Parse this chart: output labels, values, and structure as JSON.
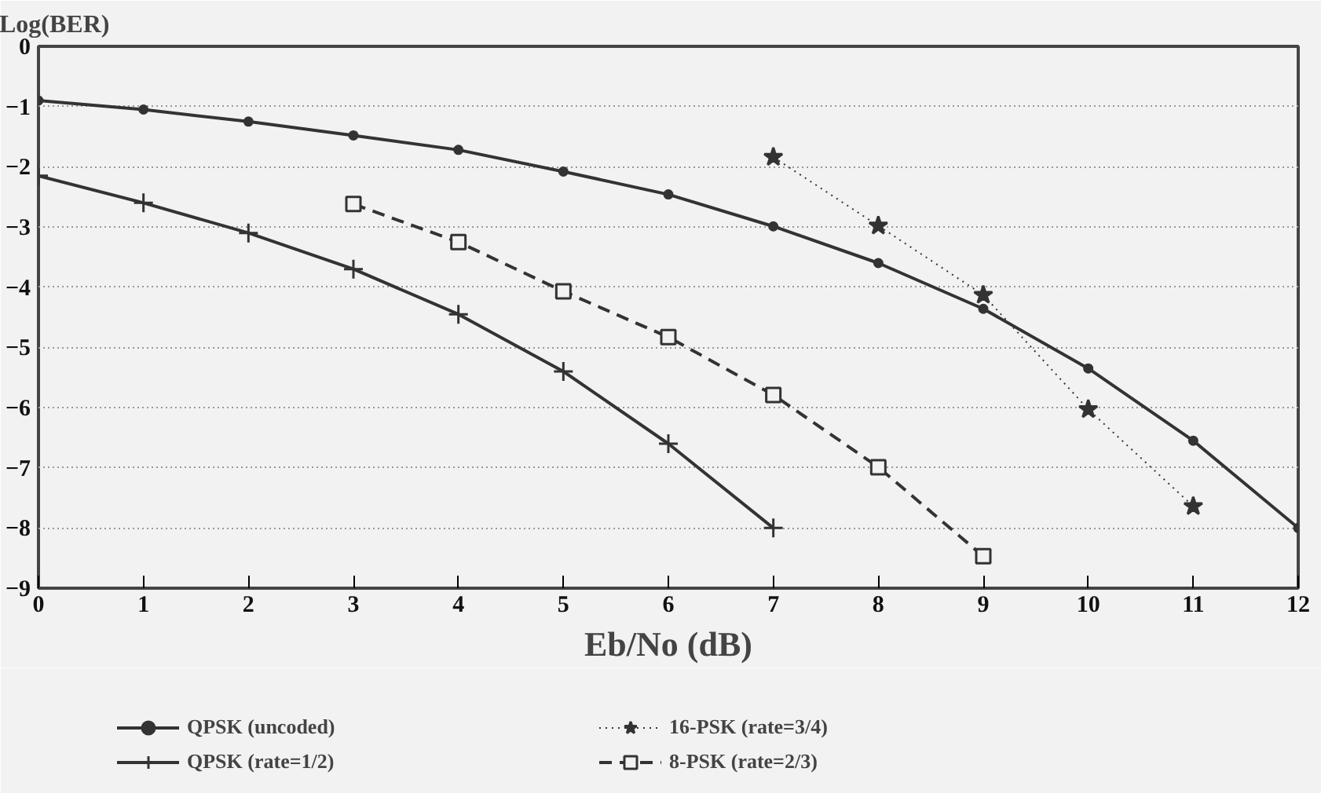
{
  "chart_data": {
    "type": "line",
    "xlabel": "Eb/No (dB)",
    "ylabel": "Log(BER)",
    "xlim": [
      0,
      12
    ],
    "ylim": [
      -9,
      0
    ],
    "xticks": [
      0,
      1,
      2,
      3,
      4,
      5,
      6,
      7,
      8,
      9,
      10,
      11,
      12
    ],
    "yticks": [
      0,
      -1,
      -2,
      -3,
      -4,
      -5,
      -6,
      -7,
      -8,
      -9
    ],
    "grid": "y",
    "legend": "bottom",
    "series": [
      {
        "name": "QPSK (uncoded)",
        "color": "#333333",
        "marker": "circle",
        "line_style": "solid",
        "x": [
          0,
          1,
          2,
          3,
          4,
          5,
          6,
          7,
          8,
          9,
          10,
          11,
          12
        ],
        "values": [
          -0.9,
          -1.05,
          -1.25,
          -1.48,
          -1.72,
          -2.08,
          -2.46,
          -2.99,
          -3.6,
          -4.36,
          -5.35,
          -6.55,
          -8.0
        ]
      },
      {
        "name": "QPSK (rate=1/2)",
        "color": "#333333",
        "marker": "cross",
        "line_style": "solid",
        "x": [
          0,
          1,
          2,
          3,
          4,
          5,
          6,
          7
        ],
        "values": [
          -2.15,
          -2.6,
          -3.1,
          -3.7,
          -4.45,
          -5.4,
          -6.6,
          -8.0
        ]
      },
      {
        "name": "16-PSK (rate=3/4)",
        "color": "#333333",
        "marker": "star",
        "line_style": "dotted",
        "x": [
          7,
          8,
          9,
          10,
          11
        ],
        "values": [
          -1.84,
          -2.98,
          -4.13,
          -6.03,
          -7.64
        ]
      },
      {
        "name": "8-PSK (rate=2/3)",
        "color": "#333333",
        "marker": "square",
        "line_style": "dashed",
        "x": [
          3,
          4,
          5,
          6,
          7,
          8,
          9
        ],
        "values": [
          -2.62,
          -3.25,
          -4.07,
          -4.83,
          -5.79,
          -6.99,
          -8.47
        ]
      }
    ]
  }
}
